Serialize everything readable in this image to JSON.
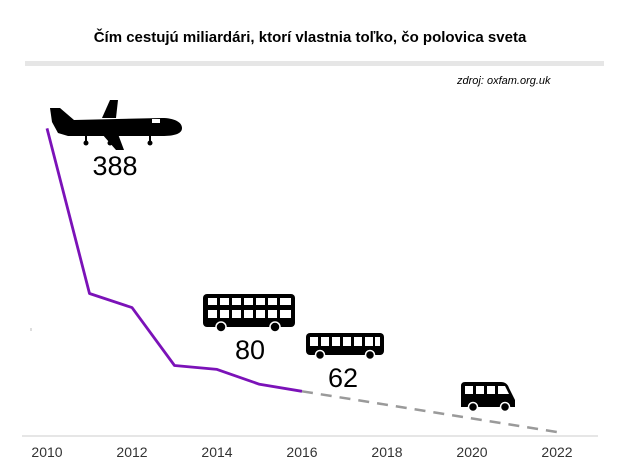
{
  "chart_data": {
    "type": "line",
    "title": "Čím cestujú miliardári, ktorí vlastnia toľko, čo polovica sveta",
    "source": "zdroj: oxfam.org.uk",
    "xlim": [
      2010,
      2022
    ],
    "ylim": [
      0,
      400
    ],
    "x_ticks": [
      "2010",
      "2012",
      "2014",
      "2016",
      "2018",
      "2020",
      "2022"
    ],
    "grid": false,
    "series": [
      {
        "style": "solid",
        "color": "#7b12b8",
        "x": [
          2010,
          2011,
          2012,
          2013,
          2014,
          2015,
          2016
        ],
        "y": [
          388,
          177,
          159,
          85,
          80,
          61,
          52
        ]
      },
      {
        "style": "dashed",
        "color": "#9a9a9a",
        "x": [
          2016,
          2022
        ],
        "y": [
          52,
          0
        ]
      }
    ],
    "annotations": [
      {
        "icon": "airplane-icon",
        "label": "388",
        "x": 2010,
        "y": 388
      },
      {
        "icon": "double-decker-bus-icon",
        "label": "80",
        "x": 2014,
        "y": 80
      },
      {
        "icon": "bus-icon",
        "label": "62",
        "x": 2017,
        "y": 62
      },
      {
        "icon": "minibus-icon",
        "label": "",
        "x": 2020,
        "y": 20
      }
    ]
  }
}
